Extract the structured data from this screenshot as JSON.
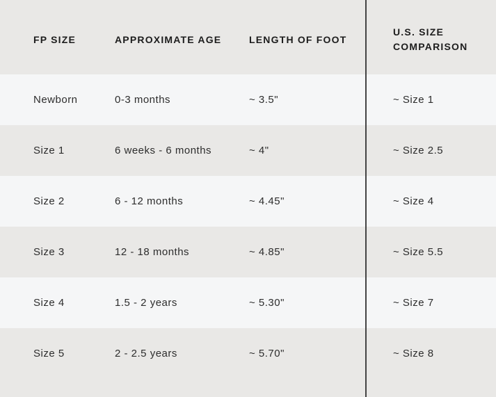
{
  "chart_data": {
    "type": "table",
    "title": "",
    "columns": [
      "FP SIZE",
      "APPROXIMATE AGE",
      "LENGTH OF FOOT",
      "U.S. SIZE COMPARISON"
    ],
    "rows": [
      [
        "Newborn",
        "0-3 months",
        "~ 3.5\"",
        "~ Size 1"
      ],
      [
        "Size 1",
        "6 weeks - 6 months",
        "~ 4\"",
        "~ Size 2.5"
      ],
      [
        "Size 2",
        "6 - 12 months",
        "~ 4.45\"",
        "~ Size 4"
      ],
      [
        "Size 3",
        "12 - 18 months",
        "~ 4.85\"",
        "~ Size 5.5"
      ],
      [
        "Size 4",
        "1.5 - 2 years",
        "~ 5.30\"",
        "~ Size 7"
      ],
      [
        "Size 5",
        "2 - 2.5 years",
        "~ 5.70\"",
        "~ Size 8"
      ]
    ],
    "layout_hints": {
      "row_striping": "alternating light and gray, starting light after gray header",
      "divider": "dark vertical rule between LENGTH OF FOOT and U.S. SIZE COMPARISON, full height"
    }
  },
  "colors": {
    "row_light": "#f5f6f7",
    "row_shaded": "#e9e8e6",
    "divider": "#434343",
    "header_text": "#1d1d1d",
    "body_text": "#2d2d2d"
  }
}
